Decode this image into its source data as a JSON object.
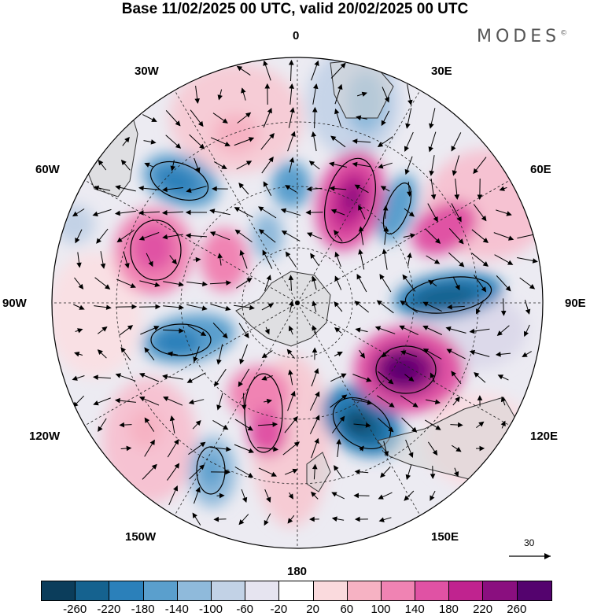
{
  "title": "Base 11/02/2025 00 UTC, valid 20/02/2025 00 UTC",
  "brand": "MODES",
  "brand_mark": "©",
  "longitude_labels": {
    "lon_0": "0",
    "lon_30e": "30E",
    "lon_60e": "60E",
    "lon_90e": "90E",
    "lon_120e": "120E",
    "lon_150e": "150E",
    "lon_180": "180",
    "lon_150w": "150W",
    "lon_120w": "120W",
    "lon_90w": "90W",
    "lon_60w": "60W",
    "lon_30w": "30W"
  },
  "reference_vector": "30",
  "colorbar": {
    "colors": [
      "#0b3d5b",
      "#15628f",
      "#2b80ba",
      "#5a9fcd",
      "#8fbadb",
      "#c2d2e6",
      "#e6e4f0",
      "#ffffff",
      "#fadadd",
      "#f6b2c3",
      "#f083b3",
      "#e052a4",
      "#c0238f",
      "#8a0f7f",
      "#54036e"
    ],
    "tick_labels": [
      "-260",
      "-220",
      "-180",
      "-140",
      "-100",
      "-60",
      "-20",
      "20",
      "60",
      "100",
      "140",
      "180",
      "220",
      "260"
    ]
  }
}
